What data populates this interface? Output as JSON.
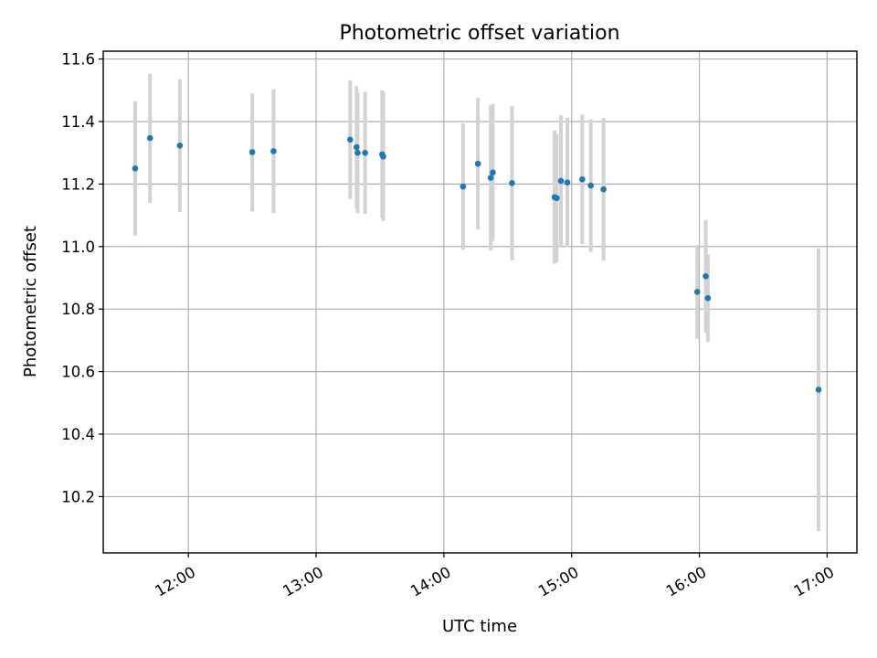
{
  "chart_data": {
    "type": "scatter",
    "title": "Photometric offset variation",
    "xlabel": "UTC time",
    "ylabel": "Photometric offset",
    "xlim": [
      "11:20",
      "17:14"
    ],
    "ylim": [
      10.02,
      11.625
    ],
    "x_ticks": [
      "12:00",
      "13:00",
      "14:00",
      "15:00",
      "16:00",
      "17:00"
    ],
    "y_ticks": [
      10.2,
      10.4,
      10.6,
      10.8,
      11.0,
      11.2,
      11.4,
      11.6
    ],
    "y_tick_labels": [
      "10.2",
      "10.4",
      "10.6",
      "10.8",
      "11.0",
      "11.2",
      "11.4",
      "11.6"
    ],
    "grid": true,
    "point_color": "#1f77b4",
    "errorbar_color": "#d3d3d3",
    "points": [
      {
        "x": "11:35",
        "y": 11.25,
        "lo": 11.035,
        "hi": 11.465
      },
      {
        "x": "11:42",
        "y": 11.347,
        "lo": 11.14,
        "hi": 11.553
      },
      {
        "x": "11:56",
        "y": 11.323,
        "lo": 11.11,
        "hi": 11.535
      },
      {
        "x": "12:30",
        "y": 11.302,
        "lo": 11.112,
        "hi": 11.49
      },
      {
        "x": "12:40",
        "y": 11.305,
        "lo": 11.107,
        "hi": 11.503
      },
      {
        "x": "13:16",
        "y": 11.342,
        "lo": 11.152,
        "hi": 11.532
      },
      {
        "x": "13:19",
        "y": 11.318,
        "lo": 11.122,
        "hi": 11.513
      },
      {
        "x": "13:19.5",
        "y": 11.3,
        "lo": 11.107,
        "hi": 11.493
      },
      {
        "x": "13:23",
        "y": 11.3,
        "lo": 11.105,
        "hi": 11.495
      },
      {
        "x": "13:31",
        "y": 11.295,
        "lo": 11.09,
        "hi": 11.5
      },
      {
        "x": "13:31.5",
        "y": 11.288,
        "lo": 11.082,
        "hi": 11.494
      },
      {
        "x": "14:09",
        "y": 11.192,
        "lo": 10.99,
        "hi": 11.394
      },
      {
        "x": "14:16",
        "y": 11.265,
        "lo": 11.055,
        "hi": 11.475
      },
      {
        "x": "14:22",
        "y": 11.22,
        "lo": 10.988,
        "hi": 11.452
      },
      {
        "x": "14:23",
        "y": 11.237,
        "lo": 11.018,
        "hi": 11.456
      },
      {
        "x": "14:32",
        "y": 11.203,
        "lo": 10.956,
        "hi": 11.45
      },
      {
        "x": "14:52",
        "y": 11.158,
        "lo": 10.945,
        "hi": 11.371
      },
      {
        "x": "14:53",
        "y": 11.155,
        "lo": 10.95,
        "hi": 11.36
      },
      {
        "x": "14:55",
        "y": 11.21,
        "lo": 11.0,
        "hi": 11.42
      },
      {
        "x": "14:58",
        "y": 11.205,
        "lo": 10.998,
        "hi": 11.412
      },
      {
        "x": "15:05",
        "y": 11.215,
        "lo": 11.008,
        "hi": 11.422
      },
      {
        "x": "15:09",
        "y": 11.195,
        "lo": 10.983,
        "hi": 11.407
      },
      {
        "x": "15:15",
        "y": 11.183,
        "lo": 10.955,
        "hi": 11.411
      },
      {
        "x": "15:59",
        "y": 10.855,
        "lo": 10.705,
        "hi": 11.005
      },
      {
        "x": "16:03",
        "y": 10.905,
        "lo": 10.725,
        "hi": 11.085
      },
      {
        "x": "16:04",
        "y": 10.835,
        "lo": 10.695,
        "hi": 10.975
      },
      {
        "x": "16:56",
        "y": 10.542,
        "lo": 10.09,
        "hi": 10.994
      }
    ]
  }
}
